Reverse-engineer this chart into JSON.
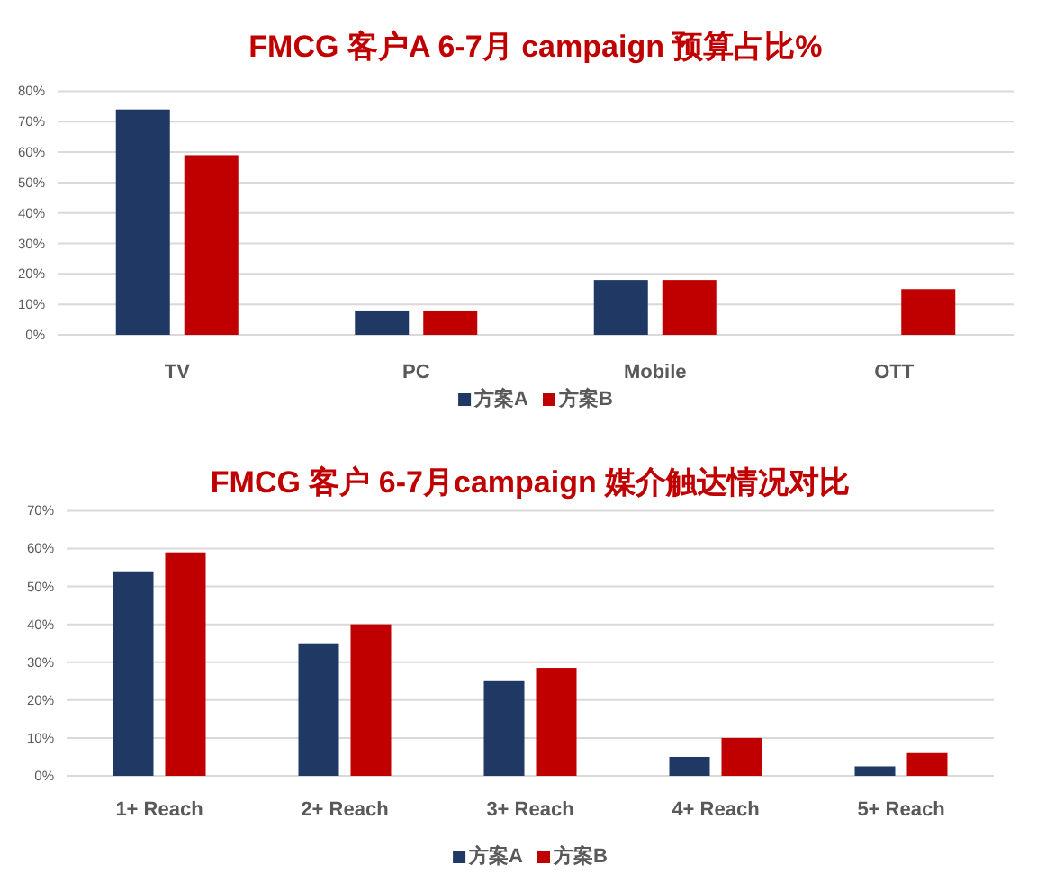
{
  "chart_data": [
    {
      "type": "bar",
      "title": "FMCG 客户A 6-7月 campaign 预算占比%",
      "categories": [
        "TV",
        "PC",
        "Mobile",
        "OTT"
      ],
      "series": [
        {
          "name": "方案A",
          "color": "#203864",
          "values": [
            74,
            8,
            18,
            null
          ]
        },
        {
          "name": "方案B",
          "color": "#c00000",
          "values": [
            59,
            8,
            18,
            15
          ]
        }
      ],
      "ylim": [
        0,
        80
      ],
      "yticks": [
        {
          "value": 0,
          "label": "0%"
        },
        {
          "value": 10,
          "label": "10%"
        },
        {
          "value": 20,
          "label": "20%"
        },
        {
          "value": 30,
          "label": "30%"
        },
        {
          "value": 40,
          "label": "40%"
        },
        {
          "value": 50,
          "label": "50%"
        },
        {
          "value": 60,
          "label": "60%"
        },
        {
          "value": 70,
          "label": "70%"
        },
        {
          "value": 80,
          "label": "80%"
        }
      ],
      "grid": "y",
      "legend": "bottom"
    },
    {
      "type": "bar",
      "title": "FMCG 客户 6-7月campaign 媒介触达情况对比",
      "categories": [
        "1+ Reach",
        "2+ Reach",
        "3+ Reach",
        "4+ Reach",
        "5+ Reach"
      ],
      "series": [
        {
          "name": "方案A",
          "color": "#203864",
          "values": [
            54,
            35,
            25,
            5,
            2.5
          ]
        },
        {
          "name": "方案B",
          "color": "#c00000",
          "values": [
            59,
            40,
            28.5,
            10,
            6
          ]
        }
      ],
      "ylim": [
        0,
        70
      ],
      "yticks": [
        {
          "value": 0,
          "label": "0%"
        },
        {
          "value": 10,
          "label": "10%"
        },
        {
          "value": 20,
          "label": "20%"
        },
        {
          "value": 30,
          "label": "30%"
        },
        {
          "value": 40,
          "label": "40%"
        },
        {
          "value": 50,
          "label": "50%"
        },
        {
          "value": 60,
          "label": "60%"
        },
        {
          "value": 70,
          "label": "70%"
        }
      ],
      "grid": "y",
      "legend": "bottom"
    }
  ]
}
